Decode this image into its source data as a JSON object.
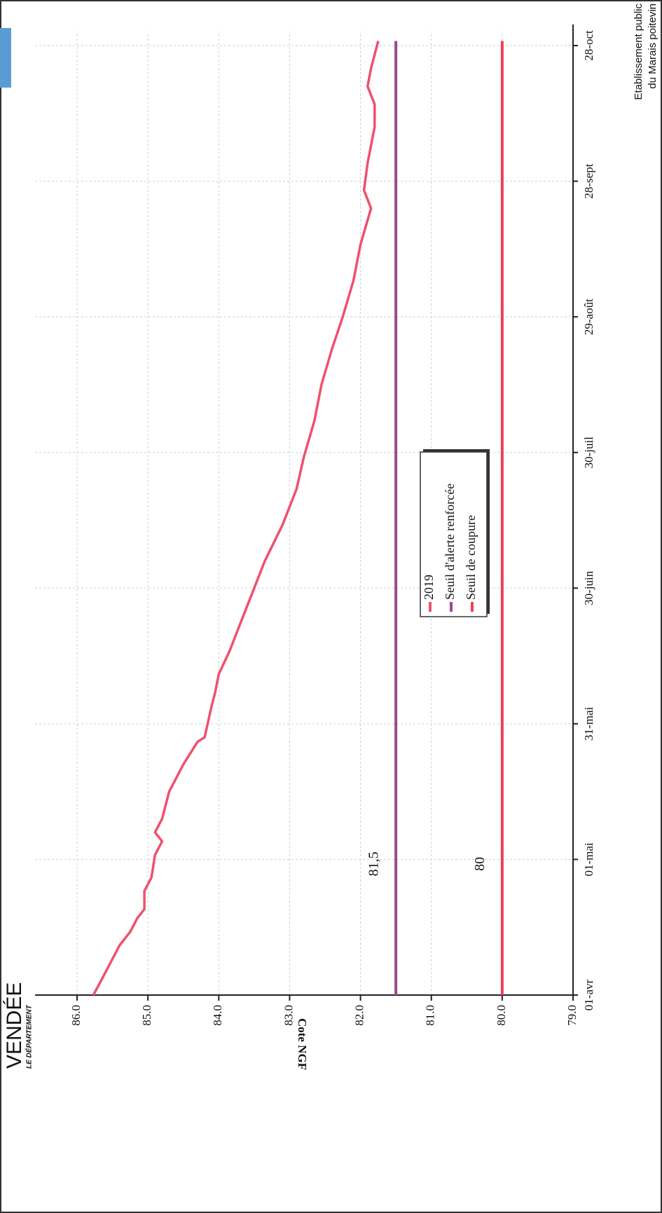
{
  "logos": {
    "left": {
      "name": "VENDÉE",
      "subtitle": "LE DÉPARTEMENT"
    },
    "right": {
      "line1": "Etablissement public",
      "line2": "du Marais poitevin"
    }
  },
  "chart_data": {
    "type": "line",
    "ylabel": "Cote NGF",
    "ylim": [
      79,
      86
    ],
    "yticks": [
      {
        "value": 79,
        "label": "79.0"
      },
      {
        "value": 80,
        "label": "80.0"
      },
      {
        "value": 81,
        "label": "81.0"
      },
      {
        "value": 82,
        "label": "82.0"
      },
      {
        "value": 83,
        "label": "83.0"
      },
      {
        "value": 84,
        "label": "84.0"
      },
      {
        "value": 85,
        "label": "85.0"
      },
      {
        "value": 86,
        "label": "86.0"
      }
    ],
    "xlim": [
      0,
      210
    ],
    "xticks": [
      {
        "value": 0,
        "label": "01-avr"
      },
      {
        "value": 30,
        "label": "01-mai"
      },
      {
        "value": 60,
        "label": "31-mai"
      },
      {
        "value": 90,
        "label": "30-juin"
      },
      {
        "value": 120,
        "label": "30-juil"
      },
      {
        "value": 150,
        "label": "29-août"
      },
      {
        "value": 180,
        "label": "28-sept"
      },
      {
        "value": 210,
        "label": "28-oct"
      }
    ],
    "grid": true,
    "series": [
      {
        "name": "2019",
        "color": "#f0506e",
        "x": [
          0,
          5,
          11,
          14,
          17,
          19,
          23,
          26,
          31,
          34,
          36,
          39,
          45,
          51,
          56,
          57,
          64,
          67,
          71,
          76,
          82,
          88,
          96,
          104,
          112,
          119,
          127,
          135,
          143,
          150,
          158,
          166,
          174,
          178,
          184,
          192,
          197,
          201,
          205,
          211
        ],
        "values": [
          85.77,
          85.6,
          85.4,
          85.25,
          85.15,
          85.05,
          85.05,
          84.95,
          84.9,
          84.8,
          84.9,
          84.8,
          84.7,
          84.5,
          84.3,
          84.2,
          84.1,
          84.05,
          84.0,
          83.85,
          83.7,
          83.55,
          83.35,
          83.1,
          82.9,
          82.8,
          82.65,
          82.55,
          82.4,
          82.25,
          82.1,
          82.0,
          81.85,
          81.95,
          81.9,
          81.8,
          81.8,
          81.9,
          81.85,
          81.75
        ]
      },
      {
        "name": "Seuil d'alerte renforcée",
        "color": "#9b4a8c",
        "x": [
          0,
          211
        ],
        "values": [
          81.5,
          81.5
        ]
      },
      {
        "name": "Seuil de coupure",
        "color": "#f0405a",
        "x": [
          0,
          211
        ],
        "values": [
          80,
          80
        ]
      }
    ],
    "annotations": [
      {
        "text": "81,5",
        "x": 29,
        "y": 81.8,
        "color": "#b0409a"
      },
      {
        "text": "80",
        "x": 29,
        "y": 80.3,
        "color": "#f0405a"
      }
    ]
  }
}
